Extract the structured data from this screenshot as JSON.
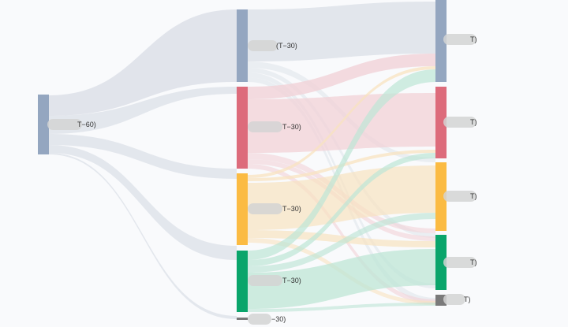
{
  "colors": {
    "background": "#f9fafc",
    "slate": "#94a6c0",
    "red": "#dd6b7b",
    "yellow": "#fbbb43",
    "green": "#0aa56b",
    "gray": "#7a7a7a",
    "slate_link": "#dfe3ea",
    "red_link": "#f1d2d7",
    "yellow_link": "#f8e3c0",
    "green_link": "#bde5d6"
  },
  "diagram": {
    "type": "sankey",
    "nodes": [
      {
        "id": "root",
        "label": "T−60)",
        "color": "slate"
      },
      {
        "id": "m1",
        "label": "(T−30)",
        "color": "slate"
      },
      {
        "id": "m2",
        "label": "T−30)",
        "color": "red"
      },
      {
        "id": "m3",
        "label": "T−30)",
        "color": "yellow"
      },
      {
        "id": "m4",
        "label": "T−30)",
        "color": "green"
      },
      {
        "id": "m5",
        "label": "−30)",
        "color": "gray"
      },
      {
        "id": "r1",
        "label": "T)",
        "color": "slate"
      },
      {
        "id": "r2",
        "label": "T)",
        "color": "red"
      },
      {
        "id": "r3",
        "label": "T)",
        "color": "yellow"
      },
      {
        "id": "r4",
        "label": "T)",
        "color": "green"
      },
      {
        "id": "r5",
        "label": "T)",
        "color": "gray"
      }
    ]
  }
}
